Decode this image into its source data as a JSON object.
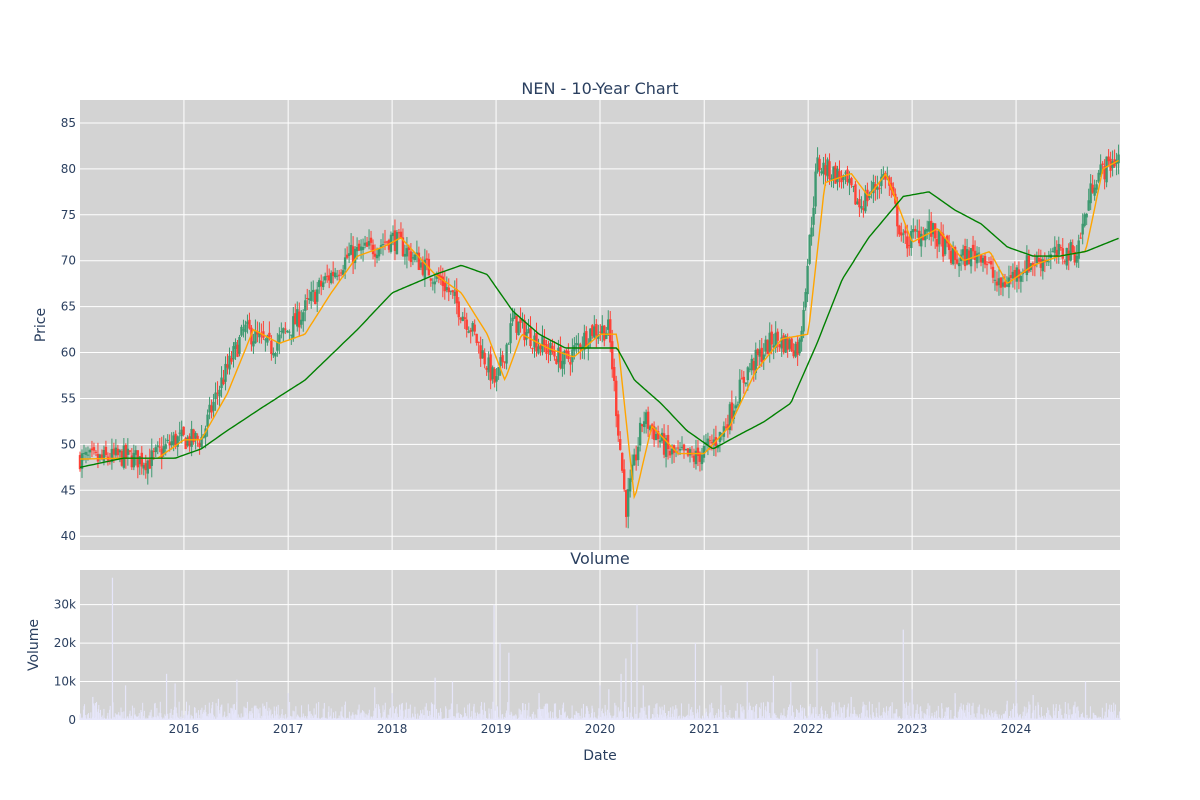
{
  "title": "NEN - 10-Year Chart",
  "chart_data": [
    {
      "type": "candlestick",
      "title": "NEN - 10-Year Chart",
      "xlabel": "",
      "ylabel": "Price",
      "x_range": [
        "2015-01-01",
        "2024-12-31"
      ],
      "ylim": [
        38.5,
        87.5
      ],
      "y_ticks": [
        40,
        45,
        50,
        55,
        60,
        65,
        70,
        75,
        80,
        85
      ],
      "grid": true,
      "colors": {
        "background": "#d3d3d3",
        "increasing": "#3d9970",
        "decreasing": "#ff4136",
        "ma_short": "#ffa500",
        "ma_long": "#008000"
      },
      "price_path": [
        [
          "2015-01-01",
          48.5
        ],
        [
          "2015-03-01",
          48.3
        ],
        [
          "2015-06-01",
          48.7
        ],
        [
          "2015-09-01",
          48.2
        ],
        [
          "2015-12-01",
          50.5
        ],
        [
          "2016-03-01",
          50.5
        ],
        [
          "2016-05-01",
          56
        ],
        [
          "2016-08-01",
          62.5
        ],
        [
          "2016-11-01",
          60.5
        ],
        [
          "2017-02-01",
          63.5
        ],
        [
          "2017-05-01",
          67.5
        ],
        [
          "2017-08-01",
          70.5
        ],
        [
          "2017-11-01",
          71.5
        ],
        [
          "2018-01-01",
          72.5
        ],
        [
          "2018-04-01",
          70
        ],
        [
          "2018-07-01",
          67.5
        ],
        [
          "2018-10-01",
          63
        ],
        [
          "2019-01-01",
          56.5
        ],
        [
          "2019-03-01",
          63.5
        ],
        [
          "2019-06-01",
          61
        ],
        [
          "2019-09-01",
          59
        ],
        [
          "2019-12-01",
          62.5
        ],
        [
          "2020-02-01",
          62.5
        ],
        [
          "2020-04-01",
          43
        ],
        [
          "2020-06-01",
          53
        ],
        [
          "2020-09-01",
          49
        ],
        [
          "2020-12-01",
          48.5
        ],
        [
          "2021-03-01",
          51
        ],
        [
          "2021-06-01",
          58
        ],
        [
          "2021-09-01",
          61.5
        ],
        [
          "2021-12-01",
          60.5
        ],
        [
          "2022-02-01",
          80.5
        ],
        [
          "2022-05-01",
          79
        ],
        [
          "2022-07-01",
          76
        ],
        [
          "2022-10-01",
          79.5
        ],
        [
          "2022-12-01",
          72
        ],
        [
          "2023-03-01",
          73.5
        ],
        [
          "2023-06-01",
          70
        ],
        [
          "2023-09-01",
          71
        ],
        [
          "2023-11-01",
          67
        ],
        [
          "2024-02-01",
          69.5
        ],
        [
          "2024-05-01",
          70.5
        ],
        [
          "2024-08-01",
          71
        ],
        [
          "2024-10-01",
          79
        ],
        [
          "2024-12-31",
          81.5
        ]
      ],
      "ma_short_path": [
        [
          "2015-01-01",
          48.4
        ],
        [
          "2015-06-01",
          48.5
        ],
        [
          "2015-10-01",
          48.5
        ],
        [
          "2016-01-01",
          50.5
        ],
        [
          "2016-03-01",
          50.5
        ],
        [
          "2016-06-01",
          55.5
        ],
        [
          "2016-09-01",
          62.5
        ],
        [
          "2016-12-01",
          61
        ],
        [
          "2017-03-01",
          62
        ],
        [
          "2017-06-01",
          66.5
        ],
        [
          "2017-09-01",
          70.5
        ],
        [
          "2017-12-01",
          71.5
        ],
        [
          "2018-02-01",
          72.5
        ],
        [
          "2018-06-01",
          68.5
        ],
        [
          "2018-09-01",
          66.5
        ],
        [
          "2018-12-01",
          62
        ],
        [
          "2019-02-01",
          57
        ],
        [
          "2019-04-01",
          62
        ],
        [
          "2019-07-01",
          60.5
        ],
        [
          "2019-10-01",
          59.5
        ],
        [
          "2020-01-01",
          62
        ],
        [
          "2020-03-01",
          62
        ],
        [
          "2020-05-01",
          44
        ],
        [
          "2020-07-01",
          52
        ],
        [
          "2020-10-01",
          49
        ],
        [
          "2021-01-01",
          49
        ],
        [
          "2021-04-01",
          52
        ],
        [
          "2021-07-01",
          58
        ],
        [
          "2021-10-01",
          61.5
        ],
        [
          "2022-01-01",
          62
        ],
        [
          "2022-03-01",
          78.5
        ],
        [
          "2022-06-01",
          79.5
        ],
        [
          "2022-08-01",
          77
        ],
        [
          "2022-10-01",
          79.5
        ],
        [
          "2023-01-01",
          72
        ],
        [
          "2023-04-01",
          73.5
        ],
        [
          "2023-07-01",
          70
        ],
        [
          "2023-10-01",
          71
        ],
        [
          "2023-12-01",
          67.5
        ],
        [
          "2024-03-01",
          69.5
        ],
        [
          "2024-06-01",
          70.5
        ],
        [
          "2024-09-01",
          71
        ],
        [
          "2024-11-01",
          80
        ],
        [
          "2024-12-31",
          81
        ]
      ],
      "ma_long_path": [
        [
          "2015-01-01",
          47.5
        ],
        [
          "2015-06-01",
          48.5
        ],
        [
          "2015-12-01",
          48.5
        ],
        [
          "2016-03-01",
          49.5
        ],
        [
          "2016-06-01",
          51.5
        ],
        [
          "2016-10-01",
          54
        ],
        [
          "2017-03-01",
          57
        ],
        [
          "2017-09-01",
          62.5
        ],
        [
          "2018-01-01",
          66.5
        ],
        [
          "2018-06-01",
          68.5
        ],
        [
          "2018-09-01",
          69.5
        ],
        [
          "2018-12-01",
          68.5
        ],
        [
          "2019-03-01",
          64.5
        ],
        [
          "2019-06-01",
          62
        ],
        [
          "2019-09-01",
          60.5
        ],
        [
          "2020-01-01",
          60.5
        ],
        [
          "2020-03-01",
          60.5
        ],
        [
          "2020-05-01",
          57
        ],
        [
          "2020-08-01",
          54.5
        ],
        [
          "2020-11-01",
          51.5
        ],
        [
          "2021-02-01",
          49.5
        ],
        [
          "2021-05-01",
          51
        ],
        [
          "2021-08-01",
          52.5
        ],
        [
          "2021-11-01",
          54.5
        ],
        [
          "2022-02-01",
          61
        ],
        [
          "2022-05-01",
          68
        ],
        [
          "2022-08-01",
          72.5
        ],
        [
          "2022-12-01",
          77
        ],
        [
          "2023-03-01",
          77.5
        ],
        [
          "2023-06-01",
          75.5
        ],
        [
          "2023-09-01",
          74
        ],
        [
          "2023-12-01",
          71.5
        ],
        [
          "2024-03-01",
          70.5
        ],
        [
          "2024-06-01",
          70.5
        ],
        [
          "2024-09-01",
          71
        ],
        [
          "2024-12-31",
          72.5
        ]
      ]
    },
    {
      "type": "bar",
      "title": "Volume",
      "xlabel": "Date",
      "ylabel": "Volume",
      "x_range": [
        "2015-01-01",
        "2024-12-31"
      ],
      "x_ticks": [
        "2016",
        "2017",
        "2018",
        "2019",
        "2020",
        "2021",
        "2022",
        "2023",
        "2024"
      ],
      "ylim": [
        0,
        39000
      ],
      "y_ticks": [
        0,
        10000,
        20000,
        30000
      ],
      "y_tick_labels": [
        "0",
        "10k",
        "20k",
        "30k"
      ],
      "colors": {
        "background": "#d3d3d3",
        "bars": "#e6e6fa"
      },
      "spikes": [
        [
          "2015-04-25",
          37000
        ],
        [
          "2015-02-15",
          6000
        ],
        [
          "2015-06-10",
          9000
        ],
        [
          "2015-11-01",
          12000
        ],
        [
          "2015-12-01",
          9500
        ],
        [
          "2016-07-05",
          10500
        ],
        [
          "2016-05-01",
          5500
        ],
        [
          "2017-01-01",
          7000
        ],
        [
          "2017-11-01",
          8500
        ],
        [
          "2018-01-01",
          7000
        ],
        [
          "2018-06-01",
          11000
        ],
        [
          "2018-08-01",
          10000
        ],
        [
          "2018-12-25",
          30000
        ],
        [
          "2019-01-15",
          20000
        ],
        [
          "2019-02-15",
          17500
        ],
        [
          "2019-06-01",
          7000
        ],
        [
          "2020-01-01",
          9000
        ],
        [
          "2020-02-01",
          8000
        ],
        [
          "2020-03-15",
          12000
        ],
        [
          "2020-04-01",
          16000
        ],
        [
          "2020-04-20",
          20000
        ],
        [
          "2020-05-10",
          30000
        ],
        [
          "2020-06-01",
          9000
        ],
        [
          "2020-12-01",
          20000
        ],
        [
          "2021-03-01",
          9000
        ],
        [
          "2021-06-01",
          10000
        ],
        [
          "2021-09-01",
          11500
        ],
        [
          "2021-11-01",
          10000
        ],
        [
          "2022-02-01",
          18500
        ],
        [
          "2022-06-01",
          6000
        ],
        [
          "2022-12-01",
          23500
        ],
        [
          "2023-01-01",
          8000
        ],
        [
          "2023-06-01",
          7000
        ],
        [
          "2023-12-01",
          5000
        ],
        [
          "2024-01-01",
          10500
        ],
        [
          "2024-03-01",
          6500
        ],
        [
          "2024-09-01",
          10000
        ],
        [
          "2024-12-01",
          3000
        ]
      ]
    }
  ]
}
